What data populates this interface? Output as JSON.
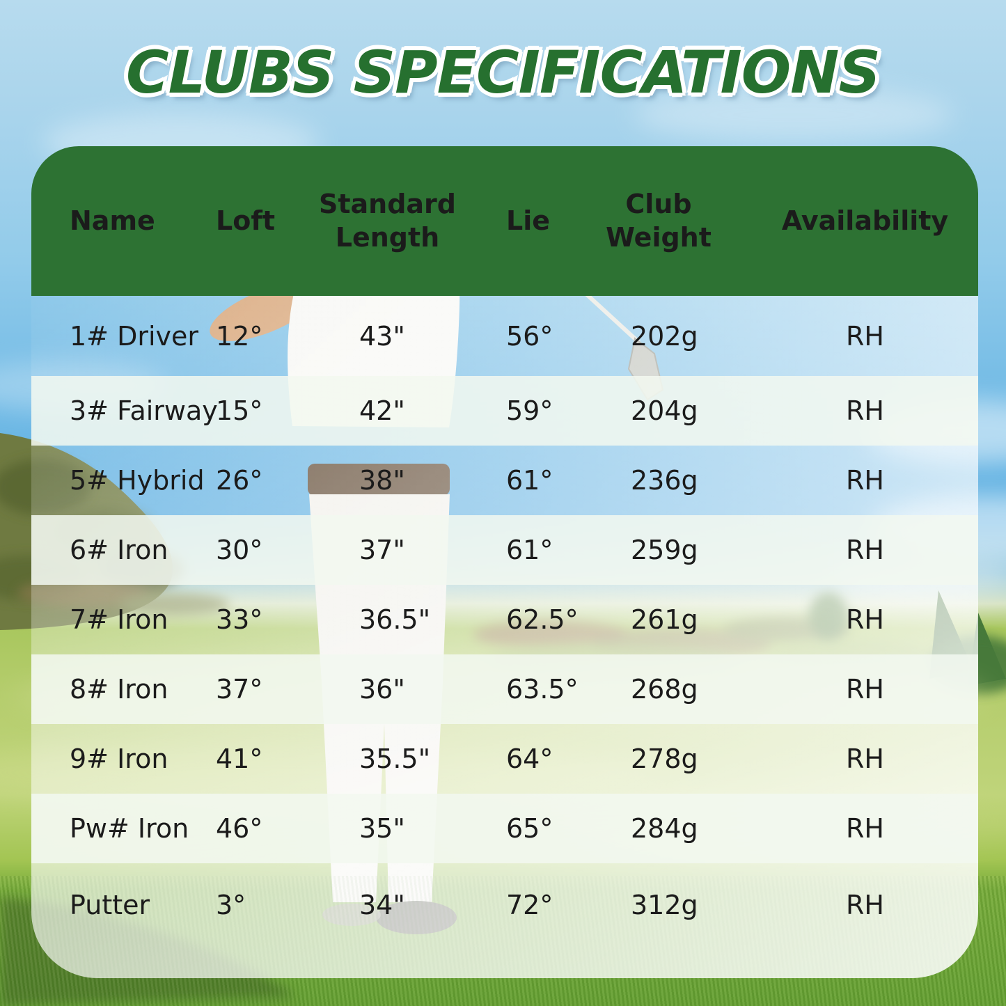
{
  "title": "CLUBS SPECIFICATIONS",
  "chart_data": {
    "type": "table",
    "title": "CLUBS SPECIFICATIONS",
    "columns": [
      "Name",
      "Loft",
      "Standard Length",
      "Lie",
      "Club Weight",
      "Availability"
    ],
    "rows": [
      [
        "1# Driver",
        "12°",
        "43\"",
        "56°",
        "202g",
        "RH"
      ],
      [
        "3# Fairway",
        "15°",
        "42\"",
        "59°",
        "204g",
        "RH"
      ],
      [
        "5# Hybrid",
        "26°",
        "38\"",
        "61°",
        "236g",
        "RH"
      ],
      [
        "6# Iron",
        "30°",
        "37\"",
        "61°",
        "259g",
        "RH"
      ],
      [
        "7# Iron",
        "33°",
        "36.5\"",
        "62.5°",
        "261g",
        "RH"
      ],
      [
        "8# Iron",
        "37°",
        "36\"",
        "63.5°",
        "268g",
        "RH"
      ],
      [
        "9# Iron",
        "41°",
        "35.5\"",
        "64°",
        "278g",
        "RH"
      ],
      [
        "Pw# Iron",
        "46°",
        "35\"",
        "65°",
        "284g",
        "RH"
      ],
      [
        "Putter",
        "3°",
        "34\"",
        "72°",
        "312g",
        "RH"
      ]
    ],
    "layout": {
      "header_position": "top",
      "alternating_row_bands": true,
      "grid": false
    }
  },
  "colors": {
    "header_bg": "#2d7233",
    "header_text": "#ffffff",
    "title_text": "#26702f",
    "cell_text": "#1b1b1b",
    "row_band": "rgba(242,248,240,0.86)"
  }
}
